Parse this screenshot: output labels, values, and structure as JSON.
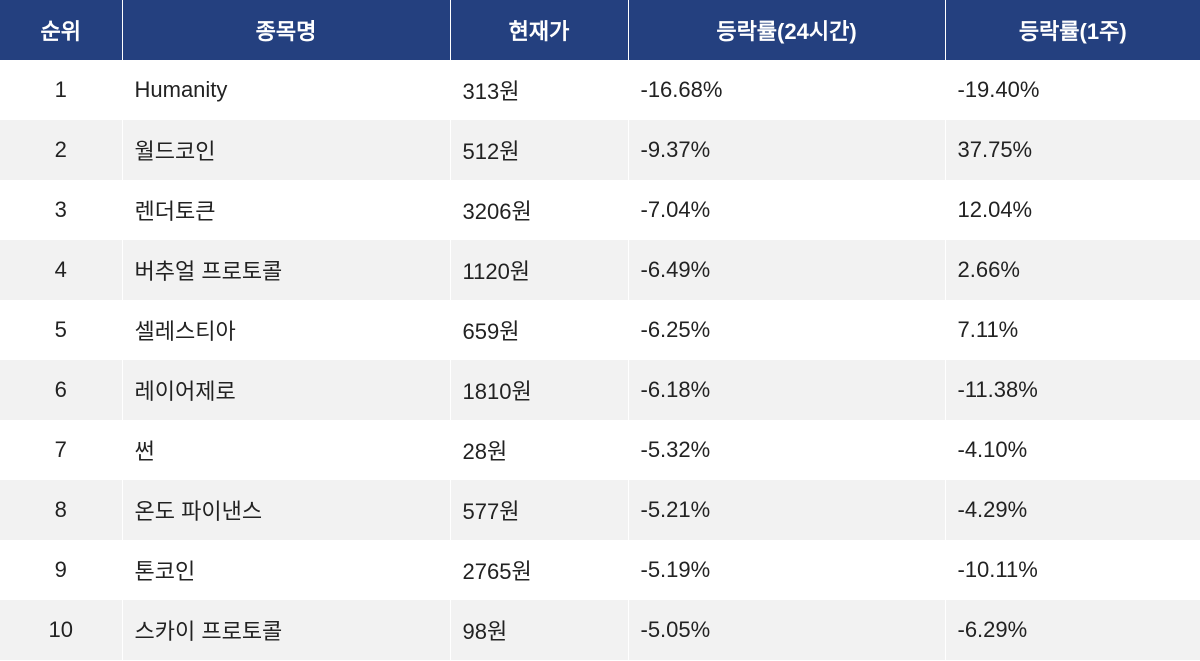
{
  "table": {
    "header": [
      "순위",
      "종목명",
      "현재가",
      "등락률(24시간)",
      "등락률(1주)"
    ],
    "rows": [
      [
        "1",
        "Humanity",
        "313원",
        "-16.68%",
        "-19.40%"
      ],
      [
        "2",
        "월드코인",
        "512원",
        "-9.37%",
        "37.75%"
      ],
      [
        "3",
        "렌더토큰",
        "3206원",
        "-7.04%",
        "12.04%"
      ],
      [
        "4",
        "버추얼 프로토콜",
        "1120원",
        "-6.49%",
        "2.66%"
      ],
      [
        "5",
        "셀레스티아",
        "659원",
        "-6.25%",
        "7.11%"
      ],
      [
        "6",
        "레이어제로",
        "1810원",
        "-6.18%",
        "-11.38%"
      ],
      [
        "7",
        "썬",
        "28원",
        "-5.32%",
        "-4.10%"
      ],
      [
        "8",
        "온도 파이낸스",
        "577원",
        "-5.21%",
        "-4.29%"
      ],
      [
        "9",
        "톤코인",
        "2765원",
        "-5.19%",
        "-10.11%"
      ],
      [
        "10",
        "스카이 프로토콜",
        "98원",
        "-5.05%",
        "-6.29%"
      ]
    ]
  }
}
